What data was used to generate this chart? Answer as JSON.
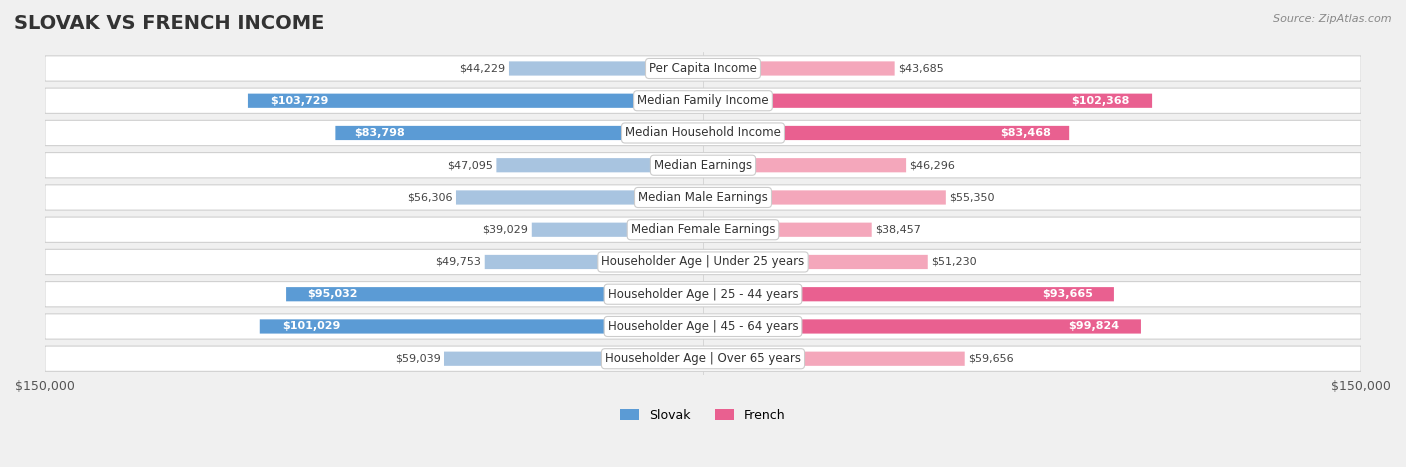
{
  "title": "SLOVAK VS FRENCH INCOME",
  "source": "Source: ZipAtlas.com",
  "categories": [
    "Per Capita Income",
    "Median Family Income",
    "Median Household Income",
    "Median Earnings",
    "Median Male Earnings",
    "Median Female Earnings",
    "Householder Age | Under 25 years",
    "Householder Age | 25 - 44 years",
    "Householder Age | 45 - 64 years",
    "Householder Age | Over 65 years"
  ],
  "slovak_values": [
    44229,
    103729,
    83798,
    47095,
    56306,
    39029,
    49753,
    95032,
    101029,
    59039
  ],
  "french_values": [
    43685,
    102368,
    83468,
    46296,
    55350,
    38457,
    51230,
    93665,
    99824,
    59656
  ],
  "slovak_labels": [
    "$44,229",
    "$103,729",
    "$83,798",
    "$47,095",
    "$56,306",
    "$39,029",
    "$49,753",
    "$95,032",
    "$101,029",
    "$59,039"
  ],
  "french_labels": [
    "$43,685",
    "$102,368",
    "$83,468",
    "$46,296",
    "$55,350",
    "$38,457",
    "$51,230",
    "$93,665",
    "$99,824",
    "$59,656"
  ],
  "slovak_color_light": "#a8c4e0",
  "slovak_color_dark": "#5b9bd5",
  "french_color_light": "#f4a7bb",
  "french_color_dark": "#e96090",
  "max_value": 150000,
  "background_color": "#f0f0f0",
  "row_bg_color": "#f7f7f7",
  "row_border_color": "#d0d0d0",
  "title_fontsize": 14,
  "label_fontsize": 8.5,
  "value_fontsize": 8,
  "legend_fontsize": 9,
  "source_fontsize": 8
}
